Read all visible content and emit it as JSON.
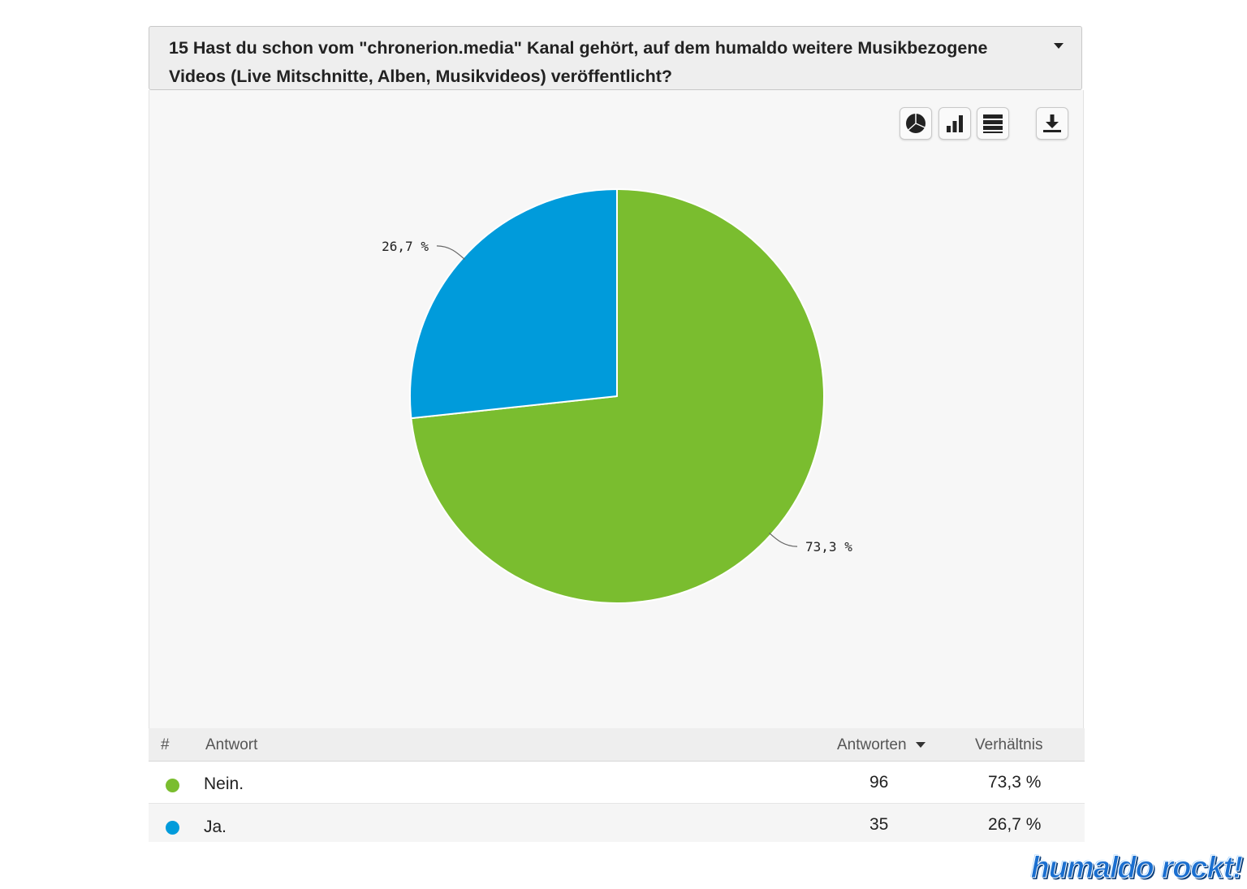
{
  "question": {
    "number": "15",
    "text": "Hast du schon vom \"chronerion.media\" Kanal gehört, auf dem humaldo weitere Musikbezogene Videos (Live Mitschnitte, Alben, Musikvideos) veröffentlicht?"
  },
  "toolbar": {
    "icons": [
      "pie-chart-icon",
      "bar-chart-icon",
      "table-icon",
      "download-icon"
    ]
  },
  "chart_data": {
    "type": "pie",
    "slices": [
      {
        "label": "Nein.",
        "value": 73.3,
        "display": "73,3 %",
        "color": "#7abd2f"
      },
      {
        "label": "Ja.",
        "value": 26.7,
        "display": "26,7 %",
        "color": "#009bdb"
      }
    ]
  },
  "table": {
    "headers": {
      "hash": "#",
      "answer": "Antwort",
      "count": "Antworten",
      "ratio": "Verhältnis"
    },
    "rows": [
      {
        "answer": "Nein.",
        "count": "96",
        "ratio": "73,3 %",
        "color": "#7abd2f"
      },
      {
        "answer": "Ja.",
        "count": "35",
        "ratio": "26,7 %",
        "color": "#009bdb"
      }
    ]
  },
  "watermark": "humaldo rockt!"
}
